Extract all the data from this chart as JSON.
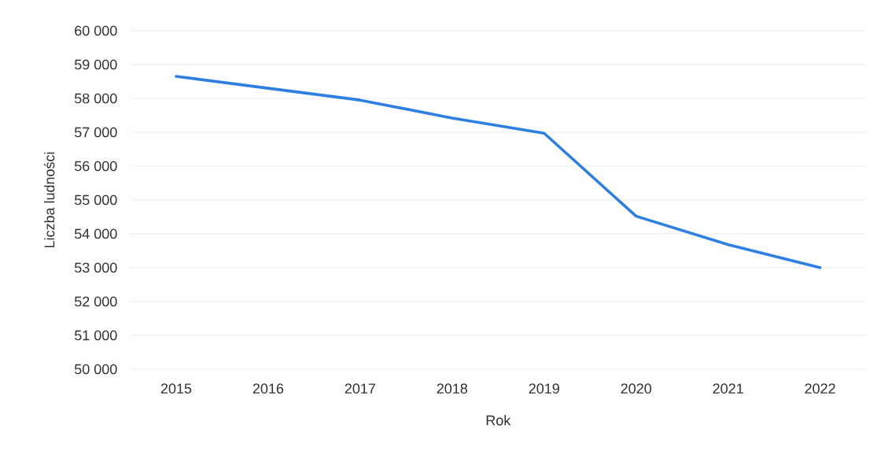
{
  "chart_data": {
    "type": "line",
    "xlabel": "Rok",
    "ylabel": "Liczba ludności",
    "categories": [
      "2015",
      "2016",
      "2017",
      "2018",
      "2019",
      "2020",
      "2021",
      "2022"
    ],
    "series": [
      {
        "color": "#2f7fe0",
        "values": [
          58650,
          58300,
          57950,
          57420,
          56970,
          54520,
          53680,
          53000
        ]
      }
    ],
    "ylim": [
      50000,
      60000
    ],
    "yticks": [
      {
        "value": 50000,
        "label": "50 000"
      },
      {
        "value": 51000,
        "label": "51 000"
      },
      {
        "value": 52000,
        "label": "52 000"
      },
      {
        "value": 53000,
        "label": "53 000"
      },
      {
        "value": 54000,
        "label": "54 000"
      },
      {
        "value": 55000,
        "label": "55 000"
      },
      {
        "value": 56000,
        "label": "56 000"
      },
      {
        "value": 57000,
        "label": "57 000"
      },
      {
        "value": 58000,
        "label": "58 000"
      },
      {
        "value": 59000,
        "label": "59 000"
      },
      {
        "value": 60000,
        "label": "60 000"
      }
    ],
    "grid": "y"
  }
}
